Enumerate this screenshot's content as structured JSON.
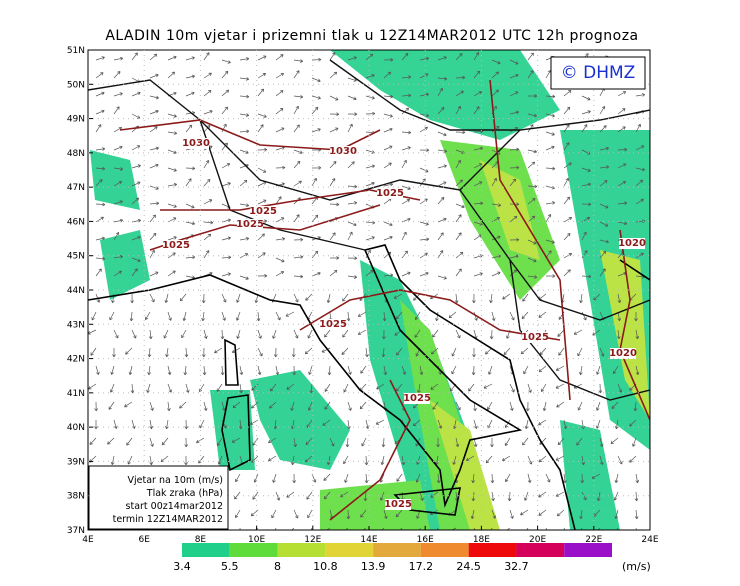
{
  "title": "ALADIN 10m vjetar i prizemni tlak u 12Z14MAR2012 UTC 12h prognoza",
  "logo": "© DHMZ",
  "lat_labels": [
    "51N",
    "50N",
    "49N",
    "48N",
    "47N",
    "46N",
    "45N",
    "44N",
    "43N",
    "42N",
    "41N",
    "40N",
    "39N",
    "38N",
    "37N"
  ],
  "lon_labels": [
    "4E",
    "6E",
    "8E",
    "10E",
    "12E",
    "14E",
    "16E",
    "18E",
    "20E",
    "22E",
    "24E"
  ],
  "isobar_labels": [
    "1030",
    "1030",
    "1025",
    "1025",
    "1025",
    "1025",
    "1025",
    "1025",
    "1020",
    "1020",
    "1025",
    "1025"
  ],
  "info_box": [
    "Vjetar na 10m  (m/s)",
    "Tlak zraka  (hPa)",
    "start 00z14mar2012",
    "termin 12Z14MAR2012"
  ],
  "legend": {
    "colors": [
      "#1fcf8a",
      "#5fdc3a",
      "#b5e033",
      "#e0d436",
      "#e3a93a",
      "#ef8a2e",
      "#ee0a0a",
      "#d4005a",
      "#9a10c8"
    ],
    "labels": [
      "3.4",
      "5.5",
      "8",
      "10.8",
      "13.9",
      "17.2",
      "24.5",
      "32.7"
    ],
    "unit": "(m/s)"
  }
}
